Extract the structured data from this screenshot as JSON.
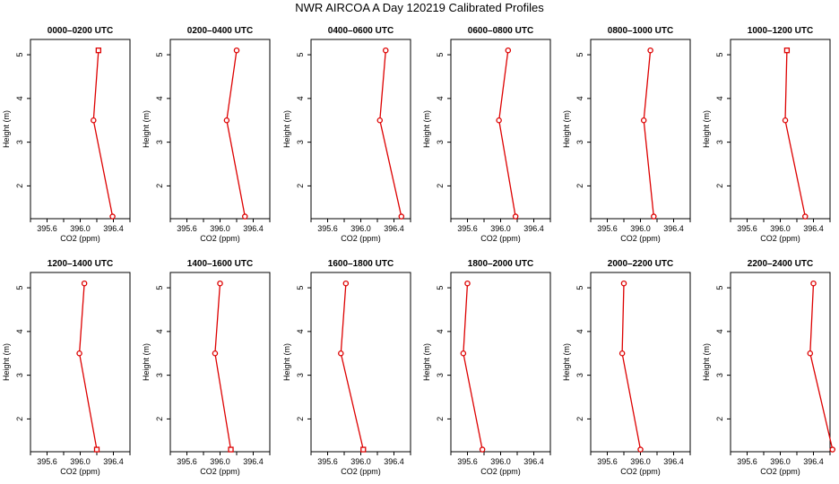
{
  "title": "NWR AIRCOA A  Day 120219  Calibrated Profiles",
  "colors": {
    "series": "#dd0000",
    "axes": "#000000",
    "background": "#ffffff"
  },
  "chart_data": [
    {
      "type": "line",
      "title": "0000–0200 UTC",
      "xlabel": "CO2 (ppm)",
      "ylabel": "Height (m)",
      "xlim": [
        395.4,
        396.6
      ],
      "ylim": [
        1.25,
        5.35
      ],
      "xticks": [
        "395.6",
        "396.0",
        "396.4"
      ],
      "xtick_values": [
        395.6,
        396.0,
        396.4
      ],
      "yticks": [
        "2",
        "3",
        "4",
        "5"
      ],
      "ytick_values": [
        2,
        3,
        4,
        5
      ],
      "grid": false,
      "legend": "none",
      "points": [
        {
          "x": 396.22,
          "y": 5.1,
          "marker": "square"
        },
        {
          "x": 396.16,
          "y": 3.5,
          "marker": "circle"
        },
        {
          "x": 396.39,
          "y": 1.3,
          "marker": "circle"
        }
      ]
    },
    {
      "type": "line",
      "title": "0200–0400 UTC",
      "xlabel": "CO2 (ppm)",
      "ylabel": "Height (m)",
      "xlim": [
        395.4,
        396.6
      ],
      "ylim": [
        1.25,
        5.35
      ],
      "xticks": [
        "395.6",
        "396.0",
        "396.4"
      ],
      "xtick_values": [
        395.6,
        396.0,
        396.4
      ],
      "yticks": [
        "2",
        "3",
        "4",
        "5"
      ],
      "ytick_values": [
        2,
        3,
        4,
        5
      ],
      "grid": false,
      "legend": "none",
      "points": [
        {
          "x": 396.2,
          "y": 5.1,
          "marker": "circle"
        },
        {
          "x": 396.08,
          "y": 3.5,
          "marker": "circle"
        },
        {
          "x": 396.3,
          "y": 1.3,
          "marker": "circle"
        }
      ]
    },
    {
      "type": "line",
      "title": "0400–0600 UTC",
      "xlabel": "CO2 (ppm)",
      "ylabel": "Height (m)",
      "xlim": [
        395.4,
        396.6
      ],
      "ylim": [
        1.25,
        5.35
      ],
      "xticks": [
        "395.6",
        "396.0",
        "396.4"
      ],
      "xtick_values": [
        395.6,
        396.0,
        396.4
      ],
      "yticks": [
        "2",
        "3",
        "4",
        "5"
      ],
      "ytick_values": [
        2,
        3,
        4,
        5
      ],
      "grid": false,
      "legend": "none",
      "points": [
        {
          "x": 396.3,
          "y": 5.1,
          "marker": "circle"
        },
        {
          "x": 396.23,
          "y": 3.5,
          "marker": "circle"
        },
        {
          "x": 396.49,
          "y": 1.3,
          "marker": "circle"
        }
      ]
    },
    {
      "type": "line",
      "title": "0600–0800 UTC",
      "xlabel": "CO2 (ppm)",
      "ylabel": "Height (m)",
      "xlim": [
        395.4,
        396.6
      ],
      "ylim": [
        1.25,
        5.35
      ],
      "xticks": [
        "395.6",
        "396.0",
        "396.4"
      ],
      "xtick_values": [
        395.6,
        396.0,
        396.4
      ],
      "yticks": [
        "2",
        "3",
        "4",
        "5"
      ],
      "ytick_values": [
        2,
        3,
        4,
        5
      ],
      "grid": false,
      "legend": "none",
      "points": [
        {
          "x": 396.09,
          "y": 5.1,
          "marker": "circle"
        },
        {
          "x": 395.98,
          "y": 3.5,
          "marker": "circle"
        },
        {
          "x": 396.18,
          "y": 1.3,
          "marker": "circle"
        }
      ]
    },
    {
      "type": "line",
      "title": "0800–1000 UTC",
      "xlabel": "CO2 (ppm)",
      "ylabel": "Height (m)",
      "xlim": [
        395.4,
        396.6
      ],
      "ylim": [
        1.25,
        5.35
      ],
      "xticks": [
        "395.6",
        "396.0",
        "396.4"
      ],
      "xtick_values": [
        395.6,
        396.0,
        396.4
      ],
      "yticks": [
        "2",
        "3",
        "4",
        "5"
      ],
      "ytick_values": [
        2,
        3,
        4,
        5
      ],
      "grid": false,
      "legend": "none",
      "points": [
        {
          "x": 396.12,
          "y": 5.1,
          "marker": "circle"
        },
        {
          "x": 396.04,
          "y": 3.5,
          "marker": "circle"
        },
        {
          "x": 396.16,
          "y": 1.3,
          "marker": "circle"
        }
      ]
    },
    {
      "type": "line",
      "title": "1000–1200 UTC",
      "xlabel": "CO2 (ppm)",
      "ylabel": "Height (m)",
      "xlim": [
        395.4,
        396.6
      ],
      "ylim": [
        1.25,
        5.35
      ],
      "xticks": [
        "395.6",
        "396.0",
        "396.4"
      ],
      "xtick_values": [
        395.6,
        396.0,
        396.4
      ],
      "yticks": [
        "2",
        "3",
        "4",
        "5"
      ],
      "ytick_values": [
        2,
        3,
        4,
        5
      ],
      "grid": false,
      "legend": "none",
      "points": [
        {
          "x": 396.08,
          "y": 5.1,
          "marker": "square"
        },
        {
          "x": 396.06,
          "y": 3.5,
          "marker": "circle"
        },
        {
          "x": 396.3,
          "y": 1.3,
          "marker": "circle"
        }
      ]
    },
    {
      "type": "line",
      "title": "1200–1400 UTC",
      "xlabel": "CO2 (ppm)",
      "ylabel": "Height (m)",
      "xlim": [
        395.4,
        396.6
      ],
      "ylim": [
        1.25,
        5.35
      ],
      "xticks": [
        "395.6",
        "396.0",
        "396.4"
      ],
      "xtick_values": [
        395.6,
        396.0,
        396.4
      ],
      "yticks": [
        "2",
        "3",
        "4",
        "5"
      ],
      "ytick_values": [
        2,
        3,
        4,
        5
      ],
      "grid": false,
      "legend": "none",
      "points": [
        {
          "x": 396.05,
          "y": 5.1,
          "marker": "circle"
        },
        {
          "x": 395.99,
          "y": 3.5,
          "marker": "circle"
        },
        {
          "x": 396.2,
          "y": 1.3,
          "marker": "square"
        }
      ]
    },
    {
      "type": "line",
      "title": "1400–1600 UTC",
      "xlabel": "CO2 (ppm)",
      "ylabel": "Height (m)",
      "xlim": [
        395.4,
        396.6
      ],
      "ylim": [
        1.25,
        5.35
      ],
      "xticks": [
        "395.6",
        "396.0",
        "396.4"
      ],
      "xtick_values": [
        395.6,
        396.0,
        396.4
      ],
      "yticks": [
        "2",
        "3",
        "4",
        "5"
      ],
      "ytick_values": [
        2,
        3,
        4,
        5
      ],
      "grid": false,
      "legend": "none",
      "points": [
        {
          "x": 396.0,
          "y": 5.1,
          "marker": "circle"
        },
        {
          "x": 395.94,
          "y": 3.5,
          "marker": "circle"
        },
        {
          "x": 396.13,
          "y": 1.3,
          "marker": "square"
        }
      ]
    },
    {
      "type": "line",
      "title": "1600–1800 UTC",
      "xlabel": "CO2 (ppm)",
      "ylabel": "Height (m)",
      "xlim": [
        395.4,
        396.6
      ],
      "ylim": [
        1.25,
        5.35
      ],
      "xticks": [
        "395.6",
        "396.0",
        "396.4"
      ],
      "xtick_values": [
        395.6,
        396.0,
        396.4
      ],
      "yticks": [
        "2",
        "3",
        "4",
        "5"
      ],
      "ytick_values": [
        2,
        3,
        4,
        5
      ],
      "grid": false,
      "legend": "none",
      "points": [
        {
          "x": 395.82,
          "y": 5.1,
          "marker": "circle"
        },
        {
          "x": 395.76,
          "y": 3.5,
          "marker": "circle"
        },
        {
          "x": 396.03,
          "y": 1.3,
          "marker": "square"
        }
      ]
    },
    {
      "type": "line",
      "title": "1800–2000 UTC",
      "xlabel": "CO2 (ppm)",
      "ylabel": "Height (m)",
      "xlim": [
        395.4,
        396.6
      ],
      "ylim": [
        1.25,
        5.35
      ],
      "xticks": [
        "395.6",
        "396.0",
        "396.4"
      ],
      "xtick_values": [
        395.6,
        396.0,
        396.4
      ],
      "yticks": [
        "2",
        "3",
        "4",
        "5"
      ],
      "ytick_values": [
        2,
        3,
        4,
        5
      ],
      "grid": false,
      "legend": "none",
      "points": [
        {
          "x": 395.6,
          "y": 5.1,
          "marker": "circle"
        },
        {
          "x": 395.55,
          "y": 3.5,
          "marker": "circle"
        },
        {
          "x": 395.78,
          "y": 1.3,
          "marker": "circle"
        }
      ]
    },
    {
      "type": "line",
      "title": "2000–2200 UTC",
      "xlabel": "CO2 (ppm)",
      "ylabel": "Height (m)",
      "xlim": [
        395.4,
        396.6
      ],
      "ylim": [
        1.25,
        5.35
      ],
      "xticks": [
        "395.6",
        "396.0",
        "396.4"
      ],
      "xtick_values": [
        395.6,
        396.0,
        396.4
      ],
      "yticks": [
        "2",
        "3",
        "4",
        "5"
      ],
      "ytick_values": [
        2,
        3,
        4,
        5
      ],
      "grid": false,
      "legend": "none",
      "points": [
        {
          "x": 395.8,
          "y": 5.1,
          "marker": "circle"
        },
        {
          "x": 395.78,
          "y": 3.5,
          "marker": "circle"
        },
        {
          "x": 396.0,
          "y": 1.3,
          "marker": "circle"
        }
      ]
    },
    {
      "type": "line",
      "title": "2200–2400 UTC",
      "xlabel": "CO2 (ppm)",
      "ylabel": "Height (m)",
      "xlim": [
        395.4,
        396.6
      ],
      "ylim": [
        1.25,
        5.35
      ],
      "xticks": [
        "395.6",
        "396.0",
        "396.4"
      ],
      "xtick_values": [
        395.6,
        396.0,
        396.4
      ],
      "yticks": [
        "2",
        "3",
        "4",
        "5"
      ],
      "ytick_values": [
        2,
        3,
        4,
        5
      ],
      "grid": false,
      "legend": "none",
      "points": [
        {
          "x": 396.4,
          "y": 5.1,
          "marker": "circle"
        },
        {
          "x": 396.36,
          "y": 3.5,
          "marker": "circle"
        },
        {
          "x": 396.63,
          "y": 1.3,
          "marker": "circle"
        }
      ]
    }
  ]
}
